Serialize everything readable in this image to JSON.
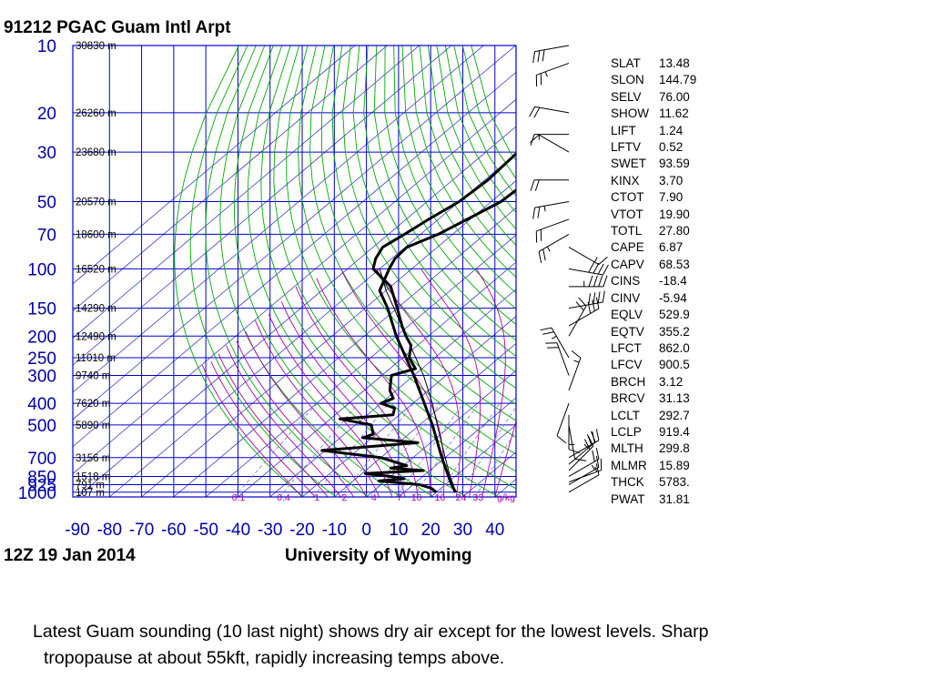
{
  "header": {
    "title": "91212 PGAC Guam Intl Arpt"
  },
  "footer": {
    "date": "12Z 19 Jan 2014",
    "source": "University of Wyoming"
  },
  "chart_data": {
    "type": "line",
    "pressure_ticks": [
      "10",
      "20",
      "30",
      "50",
      "70",
      "100",
      "150",
      "200",
      "250",
      "300",
      "400",
      "500",
      "700",
      "850",
      "925",
      "1000"
    ],
    "height_labels": [
      "30830 m",
      "26260 m",
      "23680 m",
      "20570 m",
      "18600 m",
      "16520 m",
      "14290 m",
      "12490 m",
      "11010 m",
      "9740 m",
      "7620 m",
      "5890 m",
      "3156 m",
      "1518 m",
      "791 m",
      "107 m"
    ],
    "temp_ticks": [
      "-90",
      "-80",
      "-70",
      "-60",
      "-50",
      "-40",
      "-30",
      "-20",
      "-10",
      "0",
      "10",
      "20",
      "30",
      "40"
    ],
    "mixing_ratio_labels": [
      "0.1",
      "0.4",
      "1",
      "2",
      "4",
      "7",
      "10",
      "16",
      "24",
      "33",
      "g/kg"
    ],
    "series": [
      {
        "kind": "temperature",
        "points": [
          [
            1000,
            26.0
          ],
          [
            925,
            22.0
          ],
          [
            850,
            18.0
          ],
          [
            700,
            9.0
          ],
          [
            500,
            -6.0
          ],
          [
            400,
            -16.5
          ],
          [
            300,
            -30.0
          ],
          [
            250,
            -39.0
          ],
          [
            200,
            -50.0
          ],
          [
            150,
            -63.0
          ],
          [
            125,
            -72.0
          ],
          [
            100,
            -77.0
          ],
          [
            90,
            -79.0
          ],
          [
            80,
            -79.5
          ],
          [
            70,
            -74.5
          ],
          [
            60,
            -71.0
          ],
          [
            50,
            -67.0
          ],
          [
            40,
            -66.0
          ],
          [
            30,
            -62.0
          ],
          [
            25,
            -59.0
          ],
          [
            20,
            -55.0
          ],
          [
            15,
            -50.5
          ],
          [
            12,
            -48.0
          ],
          [
            10,
            -46.0
          ]
        ]
      },
      {
        "kind": "dewpoint",
        "points": [
          [
            1000,
            20.0
          ],
          [
            960,
            17.0
          ],
          [
            925,
            12.0
          ],
          [
            890,
            -2.0
          ],
          [
            870,
            5.0
          ],
          [
            850,
            0.0
          ],
          [
            825,
            -9.0
          ],
          [
            800,
            8.0
          ],
          [
            780,
            -3.0
          ],
          [
            760,
            1.0
          ],
          [
            700,
            -10.0
          ],
          [
            650,
            -31.0
          ],
          [
            600,
            -4.0
          ],
          [
            570,
            -23.0
          ],
          [
            550,
            -21.0
          ],
          [
            500,
            -25.0
          ],
          [
            470,
            -37.0
          ],
          [
            450,
            -22.0
          ],
          [
            420,
            -24.0
          ],
          [
            400,
            -30.0
          ],
          [
            380,
            -28.0
          ],
          [
            350,
            -32.0
          ],
          [
            300,
            -37.0
          ],
          [
            280,
            -32.0
          ],
          [
            250,
            -38.0
          ],
          [
            220,
            -42.0
          ],
          [
            200,
            -47.0
          ],
          [
            180,
            -52.0
          ],
          [
            150,
            -60.0
          ],
          [
            120,
            -70.0
          ],
          [
            100,
            -82.0
          ],
          [
            90,
            -85.0
          ],
          [
            80,
            -87.0
          ],
          [
            70,
            -85.0
          ],
          [
            60,
            -83.0
          ],
          [
            50,
            -80.0
          ],
          [
            40,
            -79.0
          ],
          [
            30,
            -80.0
          ],
          [
            20,
            -81.0
          ],
          [
            10,
            -83.0
          ]
        ]
      },
      {
        "kind": "parcel",
        "points": [
          [
            1000,
            26.0
          ],
          [
            925,
            22.5
          ],
          [
            850,
            18.5
          ],
          [
            700,
            10.0
          ],
          [
            500,
            -4.5
          ],
          [
            400,
            -14.0
          ],
          [
            300,
            -27.0
          ],
          [
            250,
            -36.0
          ],
          [
            200,
            -47.0
          ],
          [
            150,
            -61.0
          ],
          [
            125,
            -70.0
          ],
          [
            100,
            -80.0
          ]
        ]
      }
    ],
    "wind_barbs": [
      {
        "p": 10,
        "dir": 260,
        "spd": 30
      },
      {
        "p": 12,
        "dir": 250,
        "spd": 25
      },
      {
        "p": 20,
        "dir": 280,
        "spd": 20
      },
      {
        "p": 25,
        "dir": 270,
        "spd": 15
      },
      {
        "p": 30,
        "dir": 300,
        "spd": 10
      },
      {
        "p": 40,
        "dir": 270,
        "spd": 20
      },
      {
        "p": 50,
        "dir": 260,
        "spd": 25
      },
      {
        "p": 60,
        "dir": 250,
        "spd": 20
      },
      {
        "p": 70,
        "dir": 240,
        "spd": 25
      },
      {
        "p": 80,
        "dir": 120,
        "spd": 15
      },
      {
        "p": 100,
        "dir": 100,
        "spd": 40
      },
      {
        "p": 120,
        "dir": 90,
        "spd": 45
      },
      {
        "p": 150,
        "dir": 80,
        "spd": 40
      },
      {
        "p": 180,
        "dir": 60,
        "spd": 30
      },
      {
        "p": 200,
        "dir": 30,
        "spd": 20
      },
      {
        "p": 250,
        "dir": 330,
        "spd": 25
      },
      {
        "p": 300,
        "dir": 340,
        "spd": 20
      },
      {
        "p": 350,
        "dir": 20,
        "spd": 15
      },
      {
        "p": 400,
        "dir": 200,
        "spd": 10
      },
      {
        "p": 450,
        "dir": 180,
        "spd": 15
      },
      {
        "p": 500,
        "dir": 170,
        "spd": 10
      },
      {
        "p": 700,
        "dir": 60,
        "spd": 20
      },
      {
        "p": 750,
        "dir": 50,
        "spd": 25
      },
      {
        "p": 800,
        "dir": 45,
        "spd": 20
      },
      {
        "p": 850,
        "dir": 60,
        "spd": 20
      },
      {
        "p": 900,
        "dir": 70,
        "spd": 15
      },
      {
        "p": 925,
        "dir": 60,
        "spd": 15
      },
      {
        "p": 1000,
        "dir": 60,
        "spd": 10
      }
    ],
    "colors": {
      "isotherm": "#0000cc",
      "dry_adiabat": "#00aa00",
      "moist_adiabat": "#aa00aa",
      "mixing_ratio": "#7777cc",
      "sounding": "#000000"
    }
  },
  "indices": [
    {
      "name": "SLAT",
      "value": "13.48"
    },
    {
      "name": "SLON",
      "value": "144.79"
    },
    {
      "name": "SELV",
      "value": "76.00"
    },
    {
      "name": "SHOW",
      "value": "11.62"
    },
    {
      "name": "LIFT",
      "value": "1.24"
    },
    {
      "name": "LFTV",
      "value": "0.52"
    },
    {
      "name": "SWET",
      "value": "93.59"
    },
    {
      "name": "KINX",
      "value": "3.70"
    },
    {
      "name": "CTOT",
      "value": "7.90"
    },
    {
      "name": "VTOT",
      "value": "19.90"
    },
    {
      "name": "TOTL",
      "value": "27.80"
    },
    {
      "name": "CAPE",
      "value": "6.87"
    },
    {
      "name": "CAPV",
      "value": "68.53"
    },
    {
      "name": "CINS",
      "value": "-18.4"
    },
    {
      "name": "CINV",
      "value": "-5.94"
    },
    {
      "name": "EQLV",
      "value": "529.9"
    },
    {
      "name": "EQTV",
      "value": "355.2"
    },
    {
      "name": "LFCT",
      "value": "862.0"
    },
    {
      "name": "LFCV",
      "value": "900.5"
    },
    {
      "name": "BRCH",
      "value": "3.12"
    },
    {
      "name": "BRCV",
      "value": "31.13"
    },
    {
      "name": "LCLT",
      "value": "292.7"
    },
    {
      "name": "LCLP",
      "value": "919.4"
    },
    {
      "name": "MLTH",
      "value": "299.8"
    },
    {
      "name": "MLMR",
      "value": "15.89"
    },
    {
      "name": "THCK",
      "value": "5783."
    },
    {
      "name": "PWAT",
      "value": "31.81"
    }
  ],
  "caption": {
    "line1": "Latest Guam sounding (10 last night) shows dry air except for the lowest levels.  Sharp",
    "line2": "tropopause at about 55kft, rapidly increasing temps above."
  }
}
